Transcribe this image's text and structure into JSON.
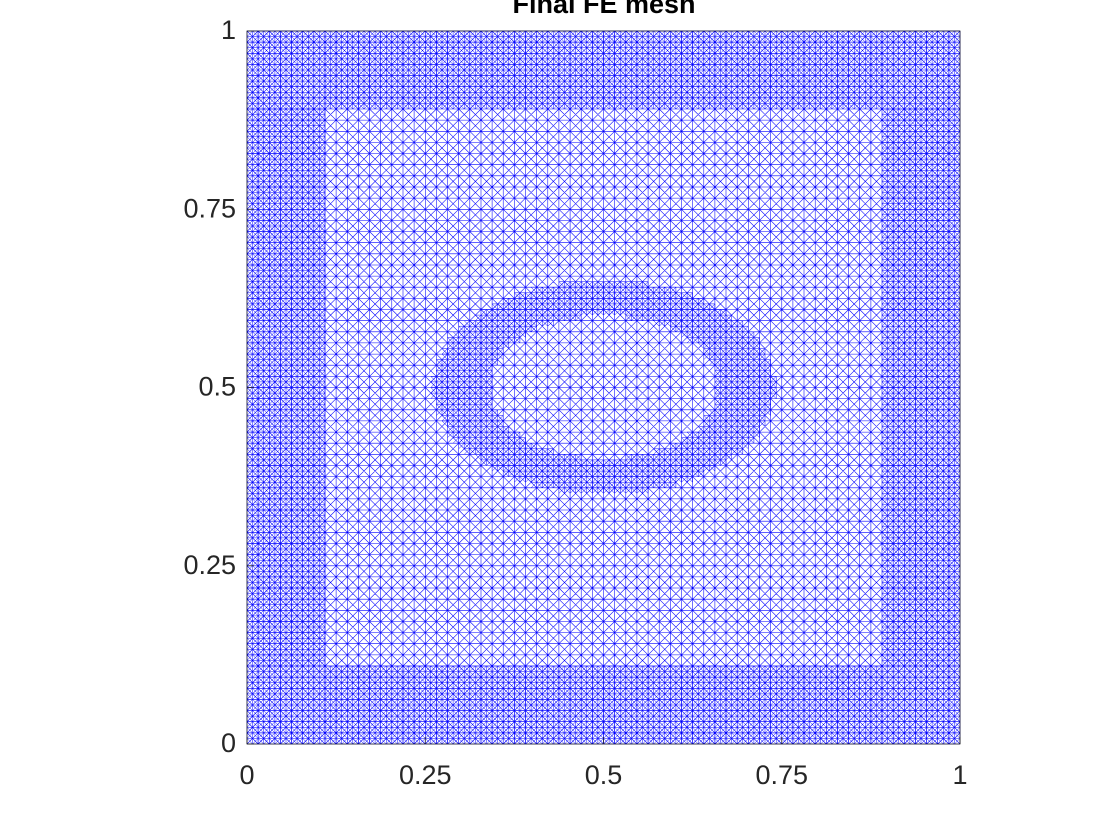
{
  "chart_data": {
    "type": "mesh",
    "title": "Final FE mesh",
    "xlim": [
      0,
      1
    ],
    "ylim": [
      0,
      1
    ],
    "xticks": [
      0,
      0.25,
      0.5,
      0.75,
      1
    ],
    "yticks": [
      0,
      0.25,
      0.5,
      0.75,
      1
    ],
    "color": "#0000ff"
  }
}
